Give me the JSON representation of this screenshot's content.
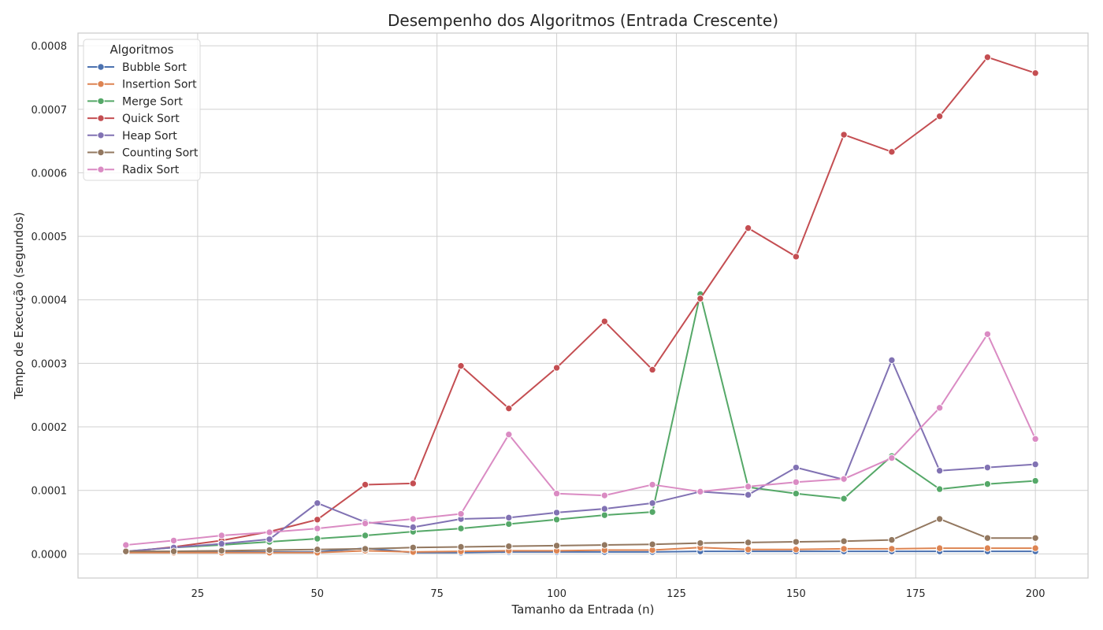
{
  "chart_data": {
    "type": "line",
    "title": "Desempenho dos Algoritmos (Entrada Crescente)",
    "xlabel": "Tamanho da Entrada (n)",
    "ylabel": "Tempo de Execução (segundos)",
    "xlim": [
      0,
      211
    ],
    "ylim": [
      -3.8e-05,
      0.00082
    ],
    "xticks": [
      25,
      50,
      75,
      100,
      125,
      150,
      175,
      200
    ],
    "yticks": [
      0.0,
      0.0001,
      0.0002,
      0.0003,
      0.0004,
      0.0005,
      0.0006,
      0.0007,
      0.0008
    ],
    "xtick_labels": [
      "25",
      "50",
      "75",
      "100",
      "125",
      "150",
      "175",
      "200"
    ],
    "ytick_labels": [
      "0.0000",
      "0.0001",
      "0.0002",
      "0.0003",
      "0.0004",
      "0.0005",
      "0.0006",
      "0.0007",
      "0.0008"
    ],
    "grid": true,
    "legend": {
      "title": "Algoritmos",
      "placement": "top-left"
    },
    "x": [
      10,
      20,
      30,
      40,
      50,
      60,
      70,
      80,
      90,
      100,
      110,
      120,
      130,
      140,
      150,
      160,
      170,
      180,
      190,
      200
    ],
    "series": [
      {
        "name": "Bubble Sort",
        "color": "#4c72b0",
        "values": [
          3e-06,
          3e-06,
          3e-06,
          3e-06,
          3e-06,
          9e-06,
          2e-06,
          2e-06,
          3e-06,
          3e-06,
          3e-06,
          3e-06,
          4e-06,
          4e-06,
          4e-06,
          4e-06,
          4e-06,
          4e-06,
          4e-06,
          4e-06
        ]
      },
      {
        "name": "Insertion Sort",
        "color": "#dd8452",
        "values": [
          2e-06,
          2e-06,
          2e-06,
          2e-06,
          2e-06,
          5e-06,
          3e-06,
          4e-06,
          5e-06,
          5e-06,
          6e-06,
          6e-06,
          1e-05,
          7e-06,
          7e-06,
          8e-06,
          8e-06,
          9e-06,
          9e-06,
          9e-06
        ]
      },
      {
        "name": "Merge Sort",
        "color": "#55a868",
        "values": [
          4e-06,
          1e-05,
          1.4e-05,
          1.9e-05,
          2.4e-05,
          2.9e-05,
          3.5e-05,
          4e-05,
          4.7e-05,
          5.4e-05,
          6.1e-05,
          6.6e-05,
          0.000409,
          0.000105,
          9.5e-05,
          8.7e-05,
          0.000154,
          0.000102,
          0.00011,
          0.000115
        ]
      },
      {
        "name": "Quick Sort",
        "color": "#c44e52",
        "values": [
          3e-06,
          1.1e-05,
          2.1e-05,
          3.5e-05,
          5.4e-05,
          0.000109,
          0.000111,
          0.000296,
          0.000229,
          0.000293,
          0.000366,
          0.00029,
          0.000402,
          0.000513,
          0.000468,
          0.00066,
          0.000633,
          0.000689,
          0.000782,
          0.000757
        ]
      },
      {
        "name": "Heap Sort",
        "color": "#8172b3",
        "values": [
          4e-06,
          1e-05,
          1.6e-05,
          2.3e-05,
          8e-05,
          5e-05,
          4.2e-05,
          5.5e-05,
          5.7e-05,
          6.5e-05,
          7.1e-05,
          8e-05,
          9.8e-05,
          9.3e-05,
          0.000136,
          0.000117,
          0.000305,
          0.000131,
          0.000136,
          0.000141
        ]
      },
      {
        "name": "Counting Sort",
        "color": "#937860",
        "values": [
          4e-06,
          4e-06,
          5e-06,
          6e-06,
          7e-06,
          8e-06,
          1e-05,
          1.1e-05,
          1.2e-05,
          1.3e-05,
          1.4e-05,
          1.5e-05,
          1.7e-05,
          1.8e-05,
          1.9e-05,
          2e-05,
          2.2e-05,
          5.5e-05,
          2.5e-05,
          2.5e-05
        ]
      },
      {
        "name": "Radix Sort",
        "color": "#da8bc3",
        "values": [
          1.4e-05,
          2.1e-05,
          2.9e-05,
          3.4e-05,
          4e-05,
          4.8e-05,
          5.5e-05,
          6.3e-05,
          0.000188,
          9.5e-05,
          9.2e-05,
          0.000109,
          9.8e-05,
          0.000106,
          0.000113,
          0.000118,
          0.000151,
          0.00023,
          0.000346,
          0.000181
        ]
      }
    ]
  }
}
